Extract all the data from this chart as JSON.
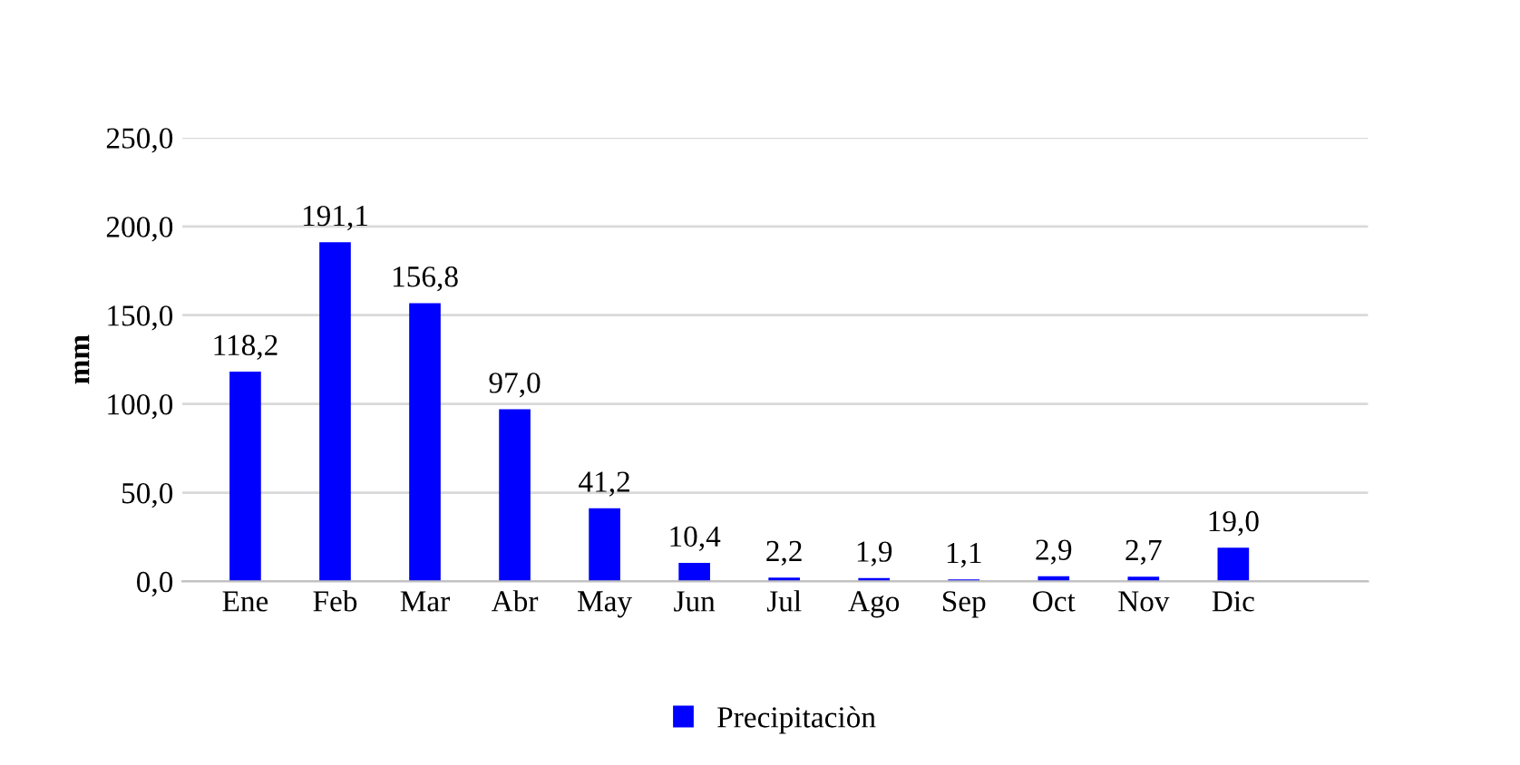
{
  "chart_data": {
    "type": "bar",
    "ylabel": "mm",
    "categories": [
      "Ene",
      "Feb",
      "Mar",
      "Abr",
      "May",
      "Jun",
      "Jul",
      "Ago",
      "Sep",
      "Oct",
      "Nov",
      "Dic"
    ],
    "series": [
      {
        "name": "Precipitaciòn",
        "color": "#0000ff",
        "values": [
          118.2,
          191.1,
          156.8,
          97.0,
          41.2,
          10.4,
          2.2,
          1.9,
          1.1,
          2.9,
          2.7,
          19.0
        ],
        "value_labels": [
          "118,2",
          "191,1",
          "156,8",
          "97,0",
          "41,2",
          "10,4",
          "2,2",
          "1,9",
          "1,1",
          "2,9",
          "2,7",
          "19,0"
        ]
      }
    ],
    "ylim": [
      0,
      250
    ],
    "yticks": [
      {
        "value": 0,
        "label": "0,0"
      },
      {
        "value": 50,
        "label": "50,0"
      },
      {
        "value": 100,
        "label": "100,0"
      },
      {
        "value": 150,
        "label": "150,0"
      },
      {
        "value": 200,
        "label": "200,0"
      },
      {
        "value": 250,
        "label": "250,0"
      }
    ],
    "grid": "y",
    "legend": "bottom"
  }
}
